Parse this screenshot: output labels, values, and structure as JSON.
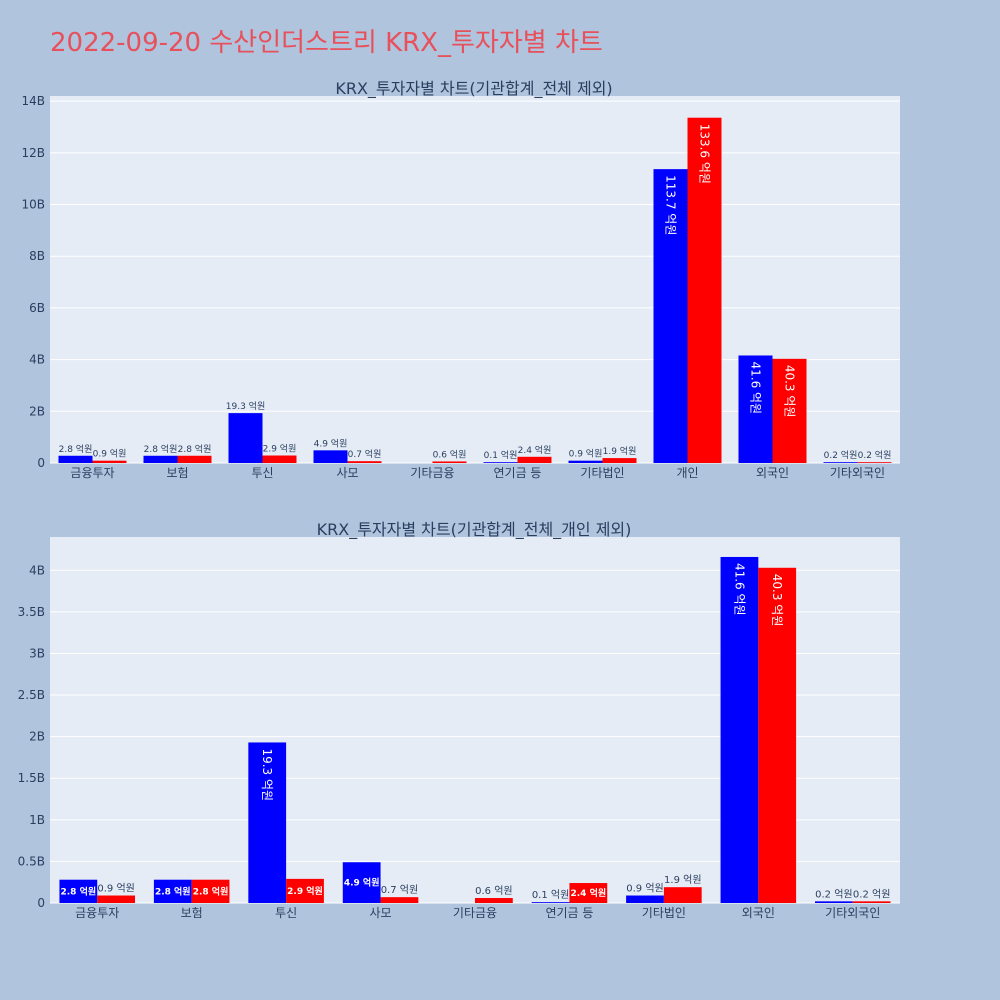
{
  "page": {
    "title": "2022-09-20 수산인더스트리 KRX_투자자별 차트"
  },
  "colors": {
    "background": "#b0c4de",
    "plot_bg": "#e5ecf6",
    "title": "#e8505b",
    "series_a": "#0000ff",
    "series_b": "#ff0000"
  },
  "chart_data": [
    {
      "type": "bar",
      "title": "KRX_투자자별 차트(기관합계_전체 제외)",
      "categories": [
        "금융투자",
        "보험",
        "투신",
        "사모",
        "기타금융",
        "연기금 등",
        "기타법인",
        "개인",
        "외국인",
        "기타외국인"
      ],
      "series": [
        {
          "color": "#0000ff",
          "values": [
            280000000,
            280000000,
            1930000000,
            490000000,
            0,
            10000000,
            90000000,
            11370000000,
            4160000000,
            20000000
          ],
          "labels": [
            "2.8 억원",
            "2.8 억원",
            "19.3 억원",
            "4.9 억원",
            "",
            "0.1 억원",
            "0.9 억원",
            "113.7 억원",
            "41.6 억원",
            "0.2 억원"
          ]
        },
        {
          "color": "#ff0000",
          "values": [
            90000000,
            280000000,
            290000000,
            70000000,
            60000000,
            240000000,
            190000000,
            13360000000,
            4030000000,
            20000000
          ],
          "labels": [
            "0.9 억원",
            "2.8 억원",
            "2.9 억원",
            "0.7 억원",
            "0.6 억원",
            "2.4 억원",
            "1.9 억원",
            "133.6 억원",
            "40.3 억원",
            "0.2 억원"
          ]
        }
      ],
      "ylim": [
        0,
        14200000000
      ],
      "yticks": [
        0,
        2000000000,
        4000000000,
        6000000000,
        8000000000,
        10000000000,
        12000000000,
        14000000000
      ],
      "yticklabels": [
        "0",
        "2B",
        "4B",
        "6B",
        "8B",
        "10B",
        "12B",
        "14B"
      ],
      "grid": true
    },
    {
      "type": "bar",
      "title": "KRX_투자자별 차트(기관합계_전체_개인 제외)",
      "categories": [
        "금융투자",
        "보험",
        "투신",
        "사모",
        "기타금융",
        "연기금 등",
        "기타법인",
        "외국인",
        "기타외국인"
      ],
      "series": [
        {
          "color": "#0000ff",
          "values": [
            280000000,
            280000000,
            1930000000,
            490000000,
            0,
            10000000,
            90000000,
            4160000000,
            20000000
          ],
          "labels": [
            "2.8 억원",
            "2.8 억원",
            "19.3 억원",
            "4.9 억원",
            "",
            "0.1 억원",
            "0.9 억원",
            "41.6 억원",
            "0.2 억원"
          ]
        },
        {
          "color": "#ff0000",
          "values": [
            90000000,
            280000000,
            290000000,
            70000000,
            60000000,
            240000000,
            190000000,
            4030000000,
            20000000
          ],
          "labels": [
            "0.9 억원",
            "2.8 억원",
            "2.9 억원",
            "0.7 억원",
            "0.6 억원",
            "2.4 억원",
            "1.9 억원",
            "40.3 억원",
            "0.2 억원"
          ]
        }
      ],
      "ylim": [
        0,
        4400000000
      ],
      "yticks": [
        0,
        500000000,
        1000000000,
        1500000000,
        2000000000,
        2500000000,
        3000000000,
        3500000000,
        4000000000
      ],
      "yticklabels": [
        "0",
        "0.5B",
        "1B",
        "1.5B",
        "2B",
        "2.5B",
        "3B",
        "3.5B",
        "4B"
      ],
      "grid": true
    }
  ]
}
